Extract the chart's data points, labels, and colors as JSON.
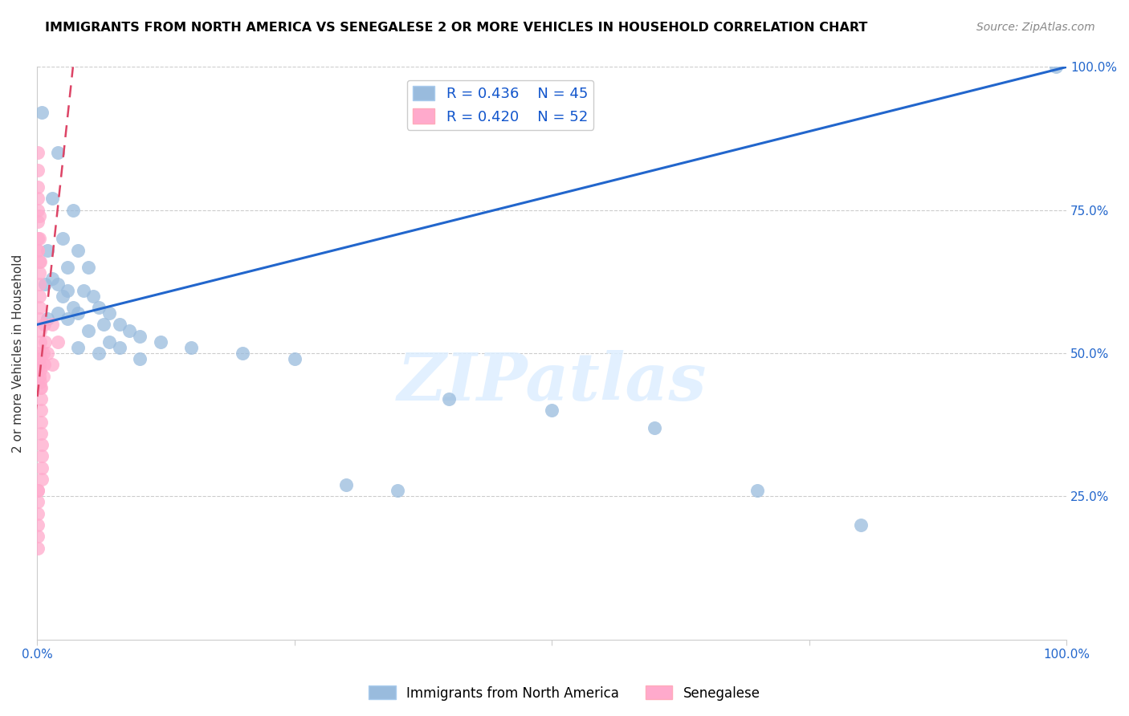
{
  "title": "IMMIGRANTS FROM NORTH AMERICA VS SENEGALESE 2 OR MORE VEHICLES IN HOUSEHOLD CORRELATION CHART",
  "source": "Source: ZipAtlas.com",
  "ylabel": "2 or more Vehicles in Household",
  "xlim": [
    0,
    100
  ],
  "ylim": [
    0,
    100
  ],
  "blue_R": 0.436,
  "blue_N": 45,
  "pink_R": 0.42,
  "pink_N": 52,
  "blue_color": "#99BBDD",
  "pink_color": "#FFAACC",
  "blue_line_color": "#2266CC",
  "pink_line_color": "#DD4466",
  "blue_label": "Immigrants from North America",
  "pink_label": "Senegalese",
  "legend_R_color": "#1155CC",
  "watermark_text": "ZIPatlas",
  "blue_points": [
    [
      0.5,
      92
    ],
    [
      2.0,
      85
    ],
    [
      1.5,
      77
    ],
    [
      3.5,
      75
    ],
    [
      2.5,
      70
    ],
    [
      1.0,
      68
    ],
    [
      4.0,
      68
    ],
    [
      3.0,
      65
    ],
    [
      5.0,
      65
    ],
    [
      1.5,
      63
    ],
    [
      2.0,
      62
    ],
    [
      0.8,
      62
    ],
    [
      3.0,
      61
    ],
    [
      4.5,
      61
    ],
    [
      2.5,
      60
    ],
    [
      5.5,
      60
    ],
    [
      3.5,
      58
    ],
    [
      6.0,
      58
    ],
    [
      2.0,
      57
    ],
    [
      4.0,
      57
    ],
    [
      7.0,
      57
    ],
    [
      1.0,
      56
    ],
    [
      3.0,
      56
    ],
    [
      6.5,
      55
    ],
    [
      8.0,
      55
    ],
    [
      5.0,
      54
    ],
    [
      9.0,
      54
    ],
    [
      10.0,
      53
    ],
    [
      7.0,
      52
    ],
    [
      12.0,
      52
    ],
    [
      4.0,
      51
    ],
    [
      8.0,
      51
    ],
    [
      15.0,
      51
    ],
    [
      6.0,
      50
    ],
    [
      20.0,
      50
    ],
    [
      10.0,
      49
    ],
    [
      25.0,
      49
    ],
    [
      30.0,
      27
    ],
    [
      35.0,
      26
    ],
    [
      40.0,
      42
    ],
    [
      50.0,
      40
    ],
    [
      60.0,
      37
    ],
    [
      70.0,
      26
    ],
    [
      80.0,
      20
    ],
    [
      99.0,
      100
    ]
  ],
  "pink_points": [
    [
      0.1,
      85
    ],
    [
      0.1,
      82
    ],
    [
      0.1,
      79
    ],
    [
      0.1,
      77
    ],
    [
      0.1,
      75
    ],
    [
      0.1,
      73
    ],
    [
      0.1,
      70
    ],
    [
      0.1,
      68
    ],
    [
      0.2,
      66
    ],
    [
      0.2,
      64
    ],
    [
      0.2,
      62
    ],
    [
      0.2,
      60
    ],
    [
      0.2,
      58
    ],
    [
      0.2,
      56
    ],
    [
      0.3,
      54
    ],
    [
      0.3,
      52
    ],
    [
      0.3,
      50
    ],
    [
      0.3,
      49
    ],
    [
      0.3,
      47
    ],
    [
      0.3,
      45
    ],
    [
      0.4,
      44
    ],
    [
      0.4,
      42
    ],
    [
      0.4,
      40
    ],
    [
      0.4,
      38
    ],
    [
      0.4,
      36
    ],
    [
      0.5,
      34
    ],
    [
      0.5,
      32
    ],
    [
      0.5,
      30
    ],
    [
      0.5,
      28
    ],
    [
      0.1,
      26
    ],
    [
      0.1,
      24
    ],
    [
      0.1,
      22
    ],
    [
      0.1,
      20
    ],
    [
      0.2,
      48
    ],
    [
      0.2,
      46
    ],
    [
      0.3,
      44
    ],
    [
      0.6,
      50
    ],
    [
      0.6,
      46
    ],
    [
      0.7,
      55
    ],
    [
      0.7,
      48
    ],
    [
      0.8,
      52
    ],
    [
      1.0,
      50
    ],
    [
      1.5,
      55
    ],
    [
      1.5,
      48
    ],
    [
      2.0,
      52
    ],
    [
      0.1,
      18
    ],
    [
      0.1,
      16
    ],
    [
      0.1,
      68
    ],
    [
      0.2,
      74
    ],
    [
      0.2,
      70
    ],
    [
      0.3,
      66
    ],
    [
      0.1,
      26
    ]
  ]
}
